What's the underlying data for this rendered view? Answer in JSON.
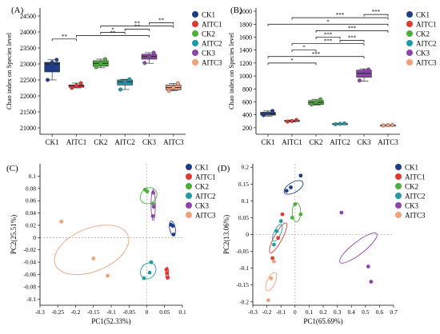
{
  "colors": {
    "CK1": "#1f3c88",
    "AITC1": "#e03a2f",
    "CK2": "#4caf3a",
    "AITC2": "#1f9aa6",
    "CK3": "#8e44ad",
    "AITC3": "#f2a07b"
  },
  "legend_labels": [
    "CK1",
    "AITC1",
    "CK2",
    "AITC2",
    "CK3",
    "AITC3"
  ],
  "chart_data": [
    {
      "panel": "(A)",
      "type": "box",
      "ylabel": "Chao index on Species level",
      "categories": [
        "CK1",
        "AITC1",
        "CK2",
        "AITC2",
        "CK3",
        "AITC3"
      ],
      "ylim": [
        20800,
        24750
      ],
      "yticks": [
        21000,
        21500,
        22000,
        22500,
        23000,
        23500,
        24000,
        24500
      ],
      "boxes": [
        {
          "min": 22500,
          "q1": 22750,
          "median": 23000,
          "q3": 23050,
          "max": 23130
        },
        {
          "min": 22250,
          "q1": 22270,
          "median": 22320,
          "q3": 22340,
          "max": 22400
        },
        {
          "min": 22880,
          "q1": 22930,
          "median": 23020,
          "q3": 23100,
          "max": 23150
        },
        {
          "min": 22200,
          "q1": 22340,
          "median": 22430,
          "q3": 22500,
          "max": 22520
        },
        {
          "min": 23020,
          "q1": 23150,
          "median": 23230,
          "q3": 23300,
          "max": 23350
        },
        {
          "min": 22160,
          "q1": 22190,
          "median": 22260,
          "q3": 22340,
          "max": 22390
        }
      ],
      "points": [
        [
          22500,
          23050,
          23130
        ],
        [
          22250,
          22330,
          22400
        ],
        [
          22900,
          23020,
          23150
        ],
        [
          22200,
          22450,
          22520
        ],
        [
          23030,
          23230,
          23350
        ],
        [
          22160,
          22270,
          22390
        ]
      ],
      "significance": [
        {
          "a": 0,
          "b": 1,
          "y": 23780,
          "label": "**"
        },
        {
          "a": 1,
          "b": 4,
          "y": 23890,
          "label": "**"
        },
        {
          "a": 2,
          "b": 3,
          "y": 23990,
          "label": "*"
        },
        {
          "a": 3,
          "b": 4,
          "y": 24090,
          "label": "**"
        },
        {
          "a": 2,
          "b": 5,
          "y": 24190,
          "label": "**"
        },
        {
          "a": 4,
          "b": 5,
          "y": 24290,
          "label": "**"
        }
      ]
    },
    {
      "panel": "(B)",
      "type": "box",
      "ylabel": "Chao index on Species level",
      "categories": [
        "CK1",
        "AITC1",
        "CK2",
        "AITC2",
        "CK3",
        "AITC3"
      ],
      "ylim": [
        100,
        2050
      ],
      "yticks": [
        200,
        400,
        600,
        800,
        1000,
        1200,
        1400,
        1600,
        1800,
        2000
      ],
      "boxes": [
        {
          "min": 380,
          "q1": 395,
          "median": 415,
          "q3": 440,
          "max": 460
        },
        {
          "min": 290,
          "q1": 298,
          "median": 305,
          "q3": 315,
          "max": 320
        },
        {
          "min": 550,
          "q1": 560,
          "median": 590,
          "q3": 620,
          "max": 640
        },
        {
          "min": 255,
          "q1": 258,
          "median": 262,
          "q3": 265,
          "max": 268
        },
        {
          "min": 920,
          "q1": 980,
          "median": 1040,
          "q3": 1090,
          "max": 1110
        },
        {
          "min": 235,
          "q1": 238,
          "median": 240,
          "q3": 243,
          "max": 246
        }
      ],
      "points": [
        [
          395,
          420,
          460
        ],
        [
          295,
          305,
          320
        ],
        [
          560,
          600,
          640
        ],
        [
          255,
          262,
          268
        ],
        [
          930,
          1080,
          1100
        ],
        [
          236,
          240,
          245
        ]
      ],
      "significance": [
        {
          "a": 0,
          "b": 2,
          "y": 1200,
          "label": "*"
        },
        {
          "a": 0,
          "b": 4,
          "y": 1300,
          "label": "***"
        },
        {
          "a": 1,
          "b": 2,
          "y": 1400,
          "label": "*"
        },
        {
          "a": 1,
          "b": 4,
          "y": 1500,
          "label": "***"
        },
        {
          "a": 2,
          "b": 3,
          "y": 1600,
          "label": "***"
        },
        {
          "a": 2,
          "b": 5,
          "y": 1700,
          "label": "***"
        },
        {
          "a": 3,
          "b": 4,
          "y": 1550,
          "label": "***"
        },
        {
          "a": 0,
          "b": 5,
          "y": 1800,
          "label": "*"
        },
        {
          "a": 1,
          "b": 5,
          "y": 1900,
          "label": "***"
        },
        {
          "a": 4,
          "b": 5,
          "y": 1950,
          "label": "***"
        }
      ]
    },
    {
      "panel": "(C)",
      "type": "scatter",
      "xlabel": "PC1(52.33%)",
      "ylabel": "PC2(25.51%)",
      "xlim": [
        -0.3,
        0.1
      ],
      "ylim": [
        -0.11,
        0.12
      ],
      "xticks": [
        -0.3,
        -0.25,
        -0.2,
        -0.15,
        -0.1,
        -0.05,
        0,
        0.05,
        0.1
      ],
      "xtick_labels": [
        "-0.3",
        "-0.25",
        "-0.2",
        "-0.15",
        "-0.1",
        "-0.05",
        "0",
        "0.05",
        "0.1"
      ],
      "yticks": [
        -0.1,
        -0.08,
        -0.06,
        -0.04,
        -0.02,
        0,
        0.02,
        0.04,
        0.06,
        0.08,
        0.1
      ],
      "yticks_labels": [
        "-0.1",
        "-0.08",
        "-0.06",
        "-0.04",
        "-0.02",
        "0",
        "0.02",
        "0.04",
        "0.06",
        "0.08",
        "0.1"
      ],
      "series": [
        {
          "group": "CK1",
          "points": [
            [
              0.068,
              0.021
            ],
            [
              0.073,
              0.019
            ],
            [
              0.075,
              0.005
            ]
          ]
        },
        {
          "group": "AITC1",
          "points": [
            [
              0.055,
              -0.052
            ],
            [
              0.057,
              -0.058
            ],
            [
              0.059,
              -0.065
            ]
          ]
        },
        {
          "group": "CK2",
          "points": [
            [
              -0.005,
              0.078
            ],
            [
              0.001,
              0.075
            ],
            [
              0.018,
              0.055
            ]
          ]
        },
        {
          "group": "AITC2",
          "points": [
            [
              -0.008,
              -0.066
            ],
            [
              0.008,
              -0.057
            ],
            [
              0.012,
              -0.04
            ]
          ]
        },
        {
          "group": "CK3",
          "points": [
            [
              0.018,
              0.073
            ],
            [
              0.02,
              0.05
            ],
            [
              0.017,
              0.035
            ]
          ]
        },
        {
          "group": "AITC3",
          "points": [
            [
              -0.24,
              0.026
            ],
            [
              -0.15,
              -0.034
            ],
            [
              -0.11,
              -0.062
            ]
          ]
        }
      ],
      "ellipses": [
        {
          "group": "CK1",
          "cx": 0.072,
          "cy": 0.015,
          "rx": 0.008,
          "ry": 0.012,
          "rot": -10
        },
        {
          "group": "AITC1",
          "cx": 0.057,
          "cy": -0.058,
          "rx": 0.004,
          "ry": 0.01,
          "rot": 0
        },
        {
          "group": "CK2",
          "cx": 0.005,
          "cy": 0.068,
          "rx": 0.025,
          "ry": 0.012,
          "rot": -40
        },
        {
          "group": "AITC2",
          "cx": 0.004,
          "cy": -0.054,
          "rx": 0.02,
          "ry": 0.014,
          "rot": 40
        },
        {
          "group": "CK3",
          "cx": 0.018,
          "cy": 0.053,
          "rx": 0.006,
          "ry": 0.025,
          "rot": 0
        },
        {
          "group": "AITC3",
          "cx": -0.155,
          "cy": -0.02,
          "rx": 0.11,
          "ry": 0.035,
          "rot": -22
        }
      ]
    },
    {
      "panel": "(D)",
      "type": "scatter",
      "xlabel": "PC1(65.69%)",
      "ylabel": "PC2(13.06%)",
      "xlim": [
        -0.3,
        0.7
      ],
      "ylim": [
        -0.21,
        0.21
      ],
      "xticks": [
        -0.3,
        -0.2,
        -0.1,
        0,
        0.1,
        0.2,
        0.3,
        0.4,
        0.5,
        0.6,
        0.7
      ],
      "xtick_labels": [
        "-0.3",
        "-0.2",
        "-0.1",
        "0",
        "0.1",
        "0.2",
        "0.3",
        "0.4",
        "0.5",
        "0.6",
        "0.7"
      ],
      "yticks": [
        -0.2,
        -0.15,
        -0.1,
        -0.05,
        0,
        0.05,
        0.1,
        0.15,
        0.2
      ],
      "yticks_labels": [
        "-0.2",
        "-0.15",
        "-0.1",
        "-0.05",
        "0",
        "0.05",
        "0.1",
        "0.15",
        "0.2"
      ],
      "series": [
        {
          "group": "CK1",
          "points": [
            [
              -0.06,
              0.13
            ],
            [
              -0.03,
              0.14
            ],
            [
              0.04,
              0.175
            ]
          ]
        },
        {
          "group": "AITC1",
          "points": [
            [
              -0.16,
              -0.07
            ],
            [
              -0.12,
              -0.01
            ],
            [
              -0.09,
              0.06
            ]
          ]
        },
        {
          "group": "CK2",
          "points": [
            [
              -0.02,
              0.05
            ],
            [
              0.0,
              0.09
            ],
            [
              0.04,
              0.06
            ]
          ]
        },
        {
          "group": "AITC2",
          "points": [
            [
              -0.15,
              -0.03
            ],
            [
              -0.13,
              0.01
            ],
            [
              -0.1,
              0.04
            ]
          ]
        },
        {
          "group": "CK3",
          "points": [
            [
              0.33,
              0.065
            ],
            [
              0.52,
              -0.095
            ],
            [
              0.54,
              -0.14
            ]
          ]
        },
        {
          "group": "AITC3",
          "points": [
            [
              -0.19,
              -0.195
            ],
            [
              -0.17,
              -0.13
            ],
            [
              -0.15,
              -0.08
            ]
          ]
        }
      ],
      "ellipses": [
        {
          "group": "CK1",
          "cx": -0.01,
          "cy": 0.14,
          "rx": 0.075,
          "ry": 0.015,
          "rot": -30
        },
        {
          "group": "AITC1",
          "cx": -0.12,
          "cy": -0.01,
          "rx": 0.12,
          "ry": 0.012,
          "rot": -62
        },
        {
          "group": "CK2",
          "cx": 0.01,
          "cy": 0.066,
          "rx": 0.03,
          "ry": 0.028,
          "rot": 0
        },
        {
          "group": "AITC2",
          "cx": -0.125,
          "cy": 0.005,
          "rx": 0.065,
          "ry": 0.01,
          "rot": -65
        },
        {
          "group": "CK3",
          "cx": 0.45,
          "cy": -0.04,
          "rx": 0.165,
          "ry": 0.018,
          "rot": -38
        },
        {
          "group": "AITC3",
          "cx": -0.17,
          "cy": -0.14,
          "rx": 0.07,
          "ry": 0.012,
          "rot": -66
        }
      ]
    }
  ]
}
